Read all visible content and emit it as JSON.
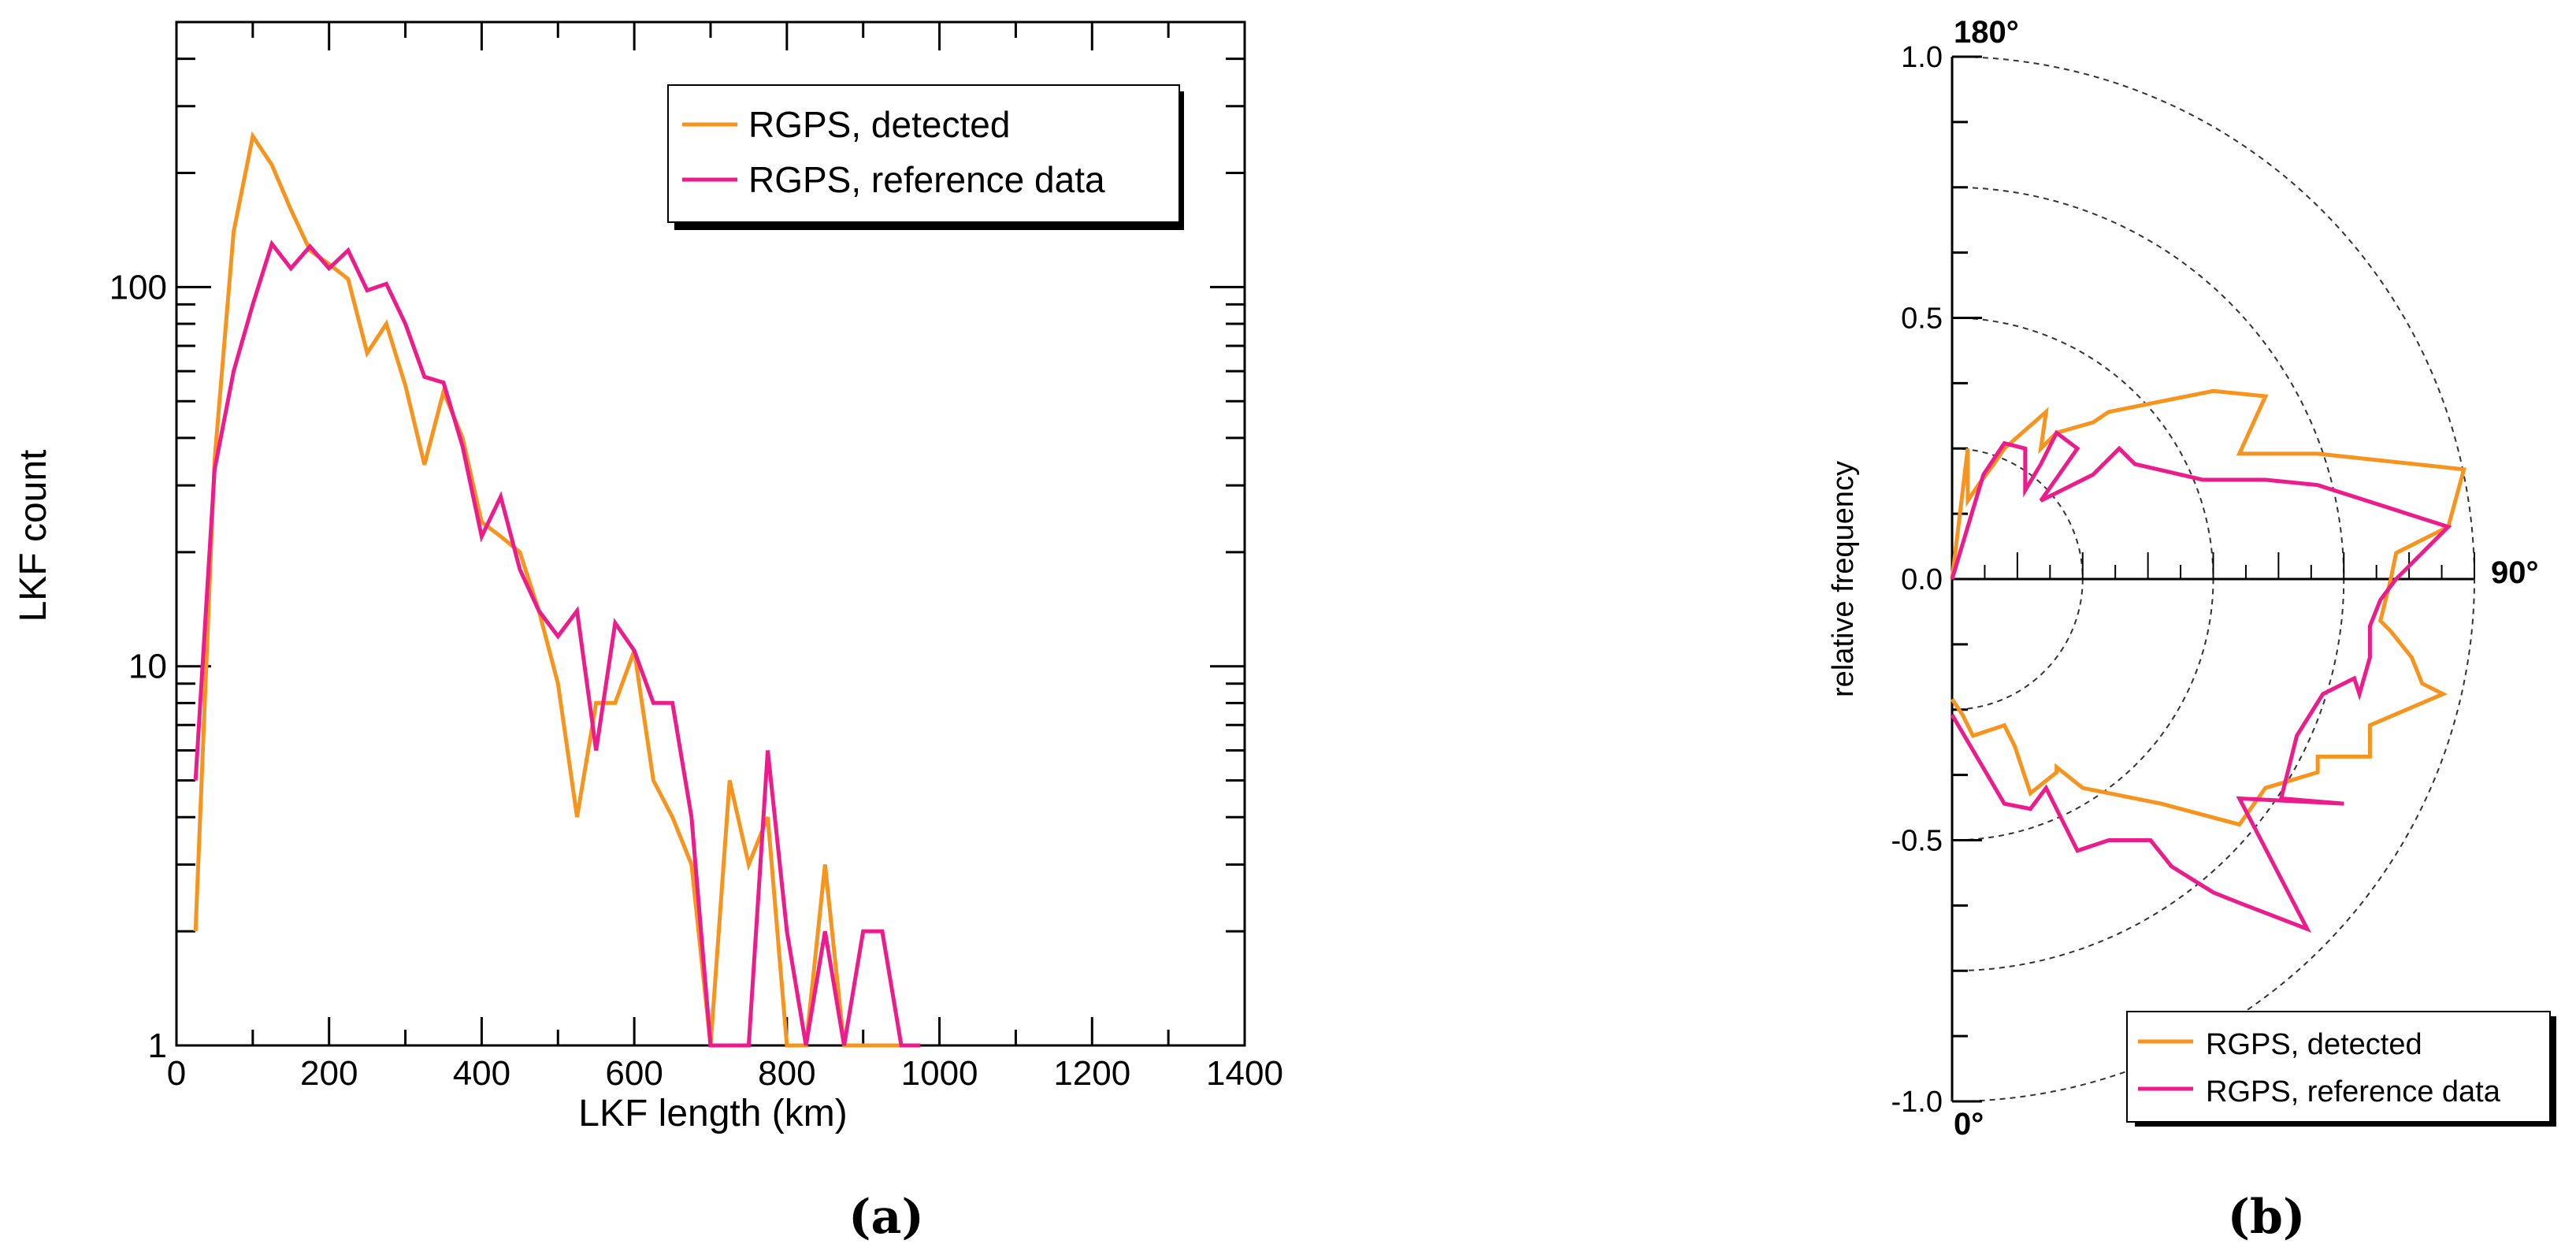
{
  "figure": {
    "panels": [
      {
        "caption": "(a)"
      },
      {
        "caption": "(b)"
      }
    ]
  },
  "chart_data": [
    {
      "type": "line",
      "title": "",
      "xlabel": "LKF length (km)",
      "ylabel": "LKF count",
      "xlim": [
        0,
        1400
      ],
      "ylim": [
        1,
        500
      ],
      "yscale": "log",
      "grid": false,
      "legend_position": "top-right",
      "xticks": [
        "0",
        "200",
        "400",
        "600",
        "800",
        "1000",
        "1200",
        "1400"
      ],
      "yticks": [
        "1",
        "10",
        "100"
      ],
      "series": [
        {
          "name": "RGPS, detected",
          "color": "#F7941D",
          "x": [
            25,
            50,
            75,
            100,
            125,
            150,
            175,
            200,
            225,
            250,
            275,
            300,
            325,
            350,
            375,
            400,
            425,
            450,
            475,
            500,
            525,
            550,
            575,
            600,
            625,
            650,
            675,
            700,
            725,
            750,
            775,
            800,
            825,
            850,
            875,
            900,
            925,
            950
          ],
          "y": [
            2,
            35,
            140,
            250,
            210,
            160,
            125,
            115,
            105,
            67,
            80,
            55,
            34,
            53,
            40,
            24,
            22,
            20,
            14,
            9,
            4,
            8,
            8,
            11,
            5,
            4,
            3,
            1,
            5,
            3,
            4,
            1,
            1,
            3,
            1,
            1,
            1,
            1
          ]
        },
        {
          "name": "RGPS, reference data",
          "color": "#EC1C8C",
          "x": [
            25,
            50,
            75,
            100,
            125,
            150,
            175,
            200,
            225,
            250,
            275,
            300,
            325,
            350,
            375,
            400,
            425,
            450,
            475,
            500,
            525,
            550,
            575,
            600,
            625,
            650,
            675,
            700,
            725,
            750,
            775,
            800,
            825,
            850,
            875,
            900,
            925,
            950,
            975
          ],
          "y": [
            5,
            33,
            60,
            90,
            130,
            112,
            128,
            112,
            125,
            98,
            102,
            80,
            58,
            56,
            38,
            22,
            28,
            18,
            14,
            12,
            14,
            6,
            13,
            11,
            8,
            8,
            4,
            1,
            1,
            1,
            6,
            2,
            1,
            2,
            1,
            2,
            2,
            1,
            1
          ]
        }
      ]
    },
    {
      "type": "polar-line",
      "title": "",
      "ylabel": "relative frequency",
      "ylim": [
        -1.0,
        1.0
      ],
      "yticks": [
        "1.0",
        "0.5",
        "0.0",
        "-0.5",
        "-1.0"
      ],
      "angle_labels": [
        "180°",
        "90°",
        "0°"
      ],
      "radial_circles": [
        0.25,
        0.5,
        0.75,
        1.0
      ],
      "legend_position": "bottom-right",
      "series": [
        {
          "name": "RGPS, detected",
          "color": "#F7941D",
          "x": [
            0.0,
            0.03,
            0.03,
            0.05,
            0.08,
            0.1,
            0.18,
            0.17,
            0.2,
            0.27,
            0.3,
            0.5,
            0.6,
            0.55,
            0.7,
            0.98,
            0.95,
            0.85,
            0.84,
            0.82,
            0.84,
            0.88,
            0.9,
            0.94,
            0.8,
            0.8,
            0.7,
            0.7,
            0.6,
            0.55,
            0.4,
            0.3,
            0.25,
            0.2,
            0.2,
            0.15,
            0.12,
            0.1,
            0.04,
            0.02,
            0.0
          ],
          "y": [
            0.0,
            0.25,
            0.15,
            0.18,
            0.22,
            0.25,
            0.32,
            0.25,
            0.28,
            0.3,
            0.32,
            0.36,
            0.35,
            0.24,
            0.24,
            0.21,
            0.1,
            0.05,
            0.0,
            -0.08,
            -0.1,
            -0.15,
            -0.2,
            -0.22,
            -0.28,
            -0.34,
            -0.34,
            -0.37,
            -0.4,
            -0.47,
            -0.43,
            -0.41,
            -0.4,
            -0.36,
            -0.37,
            -0.41,
            -0.32,
            -0.28,
            -0.3,
            -0.26,
            -0.23
          ]
        },
        {
          "name": "RGPS, reference data",
          "color": "#EC1C8C",
          "x": [
            0.0,
            0.06,
            0.1,
            0.14,
            0.14,
            0.17,
            0.2,
            0.24,
            0.17,
            0.27,
            0.32,
            0.35,
            0.48,
            0.6,
            0.7,
            0.95,
            0.9,
            0.85,
            0.82,
            0.8,
            0.8,
            0.78,
            0.77,
            0.71,
            0.66,
            0.63,
            0.75,
            0.55,
            0.68,
            0.55,
            0.5,
            0.42,
            0.38,
            0.3,
            0.24,
            0.18,
            0.15,
            0.1,
            0.0
          ],
          "y": [
            0.0,
            0.2,
            0.26,
            0.25,
            0.17,
            0.22,
            0.28,
            0.25,
            0.15,
            0.2,
            0.25,
            0.22,
            0.19,
            0.19,
            0.18,
            0.1,
            0.05,
            0.0,
            -0.04,
            -0.09,
            -0.15,
            -0.22,
            -0.19,
            -0.22,
            -0.3,
            -0.42,
            -0.43,
            -0.42,
            -0.67,
            -0.62,
            -0.6,
            -0.55,
            -0.5,
            -0.5,
            -0.52,
            -0.4,
            -0.44,
            -0.43,
            -0.26
          ]
        }
      ]
    }
  ]
}
